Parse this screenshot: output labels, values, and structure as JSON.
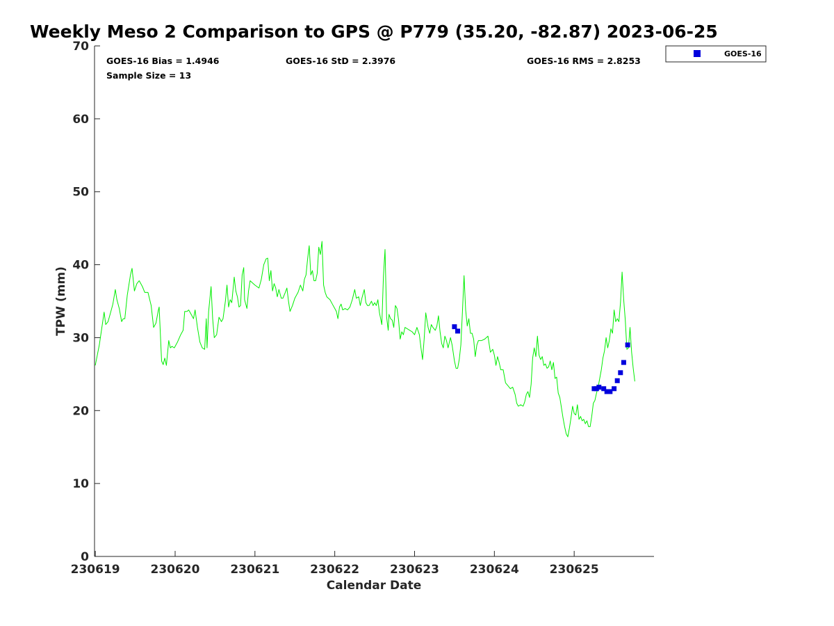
{
  "chart_data": {
    "type": "line",
    "title": "Weekly Meso 2 Comparison to GPS @ P779 (35.20, -82.87) 2023-06-25",
    "xlabel": "Calendar Date",
    "ylabel": "TPW (mm)",
    "xlim": [
      -0.01,
      7.0
    ],
    "ylim": [
      0,
      70
    ],
    "x_ticks": [
      {
        "value": 0,
        "label": "230619"
      },
      {
        "value": 1,
        "label": "230620"
      },
      {
        "value": 2,
        "label": "230621"
      },
      {
        "value": 3,
        "label": "230622"
      },
      {
        "value": 4,
        "label": "230623"
      },
      {
        "value": 5,
        "label": "230624"
      },
      {
        "value": 6,
        "label": "230625"
      }
    ],
    "y_ticks": [
      0,
      10,
      20,
      30,
      40,
      50,
      60,
      70
    ],
    "grid": false,
    "legend": {
      "placement": "outside-top-right",
      "entries": [
        "GOES-16"
      ]
    },
    "stats": {
      "bias": "GOES-16 Bias = 1.4946",
      "std": "GOES-16 StD = 2.3976",
      "rms": "GOES-16 RMS = 2.8253",
      "sample": "Sample Size = 13"
    },
    "series": [
      {
        "color": "#00ee00",
        "style": "line",
        "points": [
          [
            0.0,
            26.2
          ],
          [
            0.05,
            29.0
          ],
          [
            0.09,
            32.0
          ],
          [
            0.11,
            33.5
          ],
          [
            0.13,
            31.8
          ],
          [
            0.16,
            32.2
          ],
          [
            0.19,
            33.4
          ],
          [
            0.22,
            34.6
          ],
          [
            0.25,
            36.6
          ],
          [
            0.27,
            35.2
          ],
          [
            0.3,
            34.0
          ],
          [
            0.33,
            32.2
          ],
          [
            0.35,
            32.6
          ],
          [
            0.37,
            32.6
          ],
          [
            0.4,
            35.8
          ],
          [
            0.44,
            38.6
          ],
          [
            0.46,
            39.5
          ],
          [
            0.49,
            36.4
          ],
          [
            0.52,
            37.4
          ],
          [
            0.55,
            37.8
          ],
          [
            0.59,
            37.0
          ],
          [
            0.62,
            36.2
          ],
          [
            0.66,
            36.2
          ],
          [
            0.7,
            34.4
          ],
          [
            0.73,
            31.4
          ],
          [
            0.76,
            32.0
          ],
          [
            0.79,
            33.8
          ],
          [
            0.8,
            34.2
          ],
          [
            0.83,
            26.8
          ],
          [
            0.85,
            26.3
          ],
          [
            0.87,
            27.2
          ],
          [
            0.89,
            26.2
          ],
          [
            0.92,
            29.6
          ],
          [
            0.94,
            28.6
          ],
          [
            0.96,
            28.8
          ],
          [
            0.99,
            28.6
          ],
          [
            1.03,
            29.4
          ],
          [
            1.07,
            30.4
          ],
          [
            1.1,
            31.0
          ],
          [
            1.12,
            33.6
          ],
          [
            1.15,
            33.6
          ],
          [
            1.17,
            33.8
          ],
          [
            1.2,
            33.2
          ],
          [
            1.23,
            32.6
          ],
          [
            1.25,
            33.8
          ],
          [
            1.28,
            31.4
          ],
          [
            1.31,
            29.4
          ],
          [
            1.34,
            28.6
          ],
          [
            1.37,
            28.4
          ],
          [
            1.39,
            32.6
          ],
          [
            1.4,
            28.6
          ],
          [
            1.42,
            33.6
          ],
          [
            1.45,
            37.0
          ],
          [
            1.47,
            32.6
          ],
          [
            1.49,
            30.0
          ],
          [
            1.52,
            30.4
          ],
          [
            1.55,
            32.8
          ],
          [
            1.58,
            32.2
          ],
          [
            1.6,
            32.6
          ],
          [
            1.63,
            35.0
          ],
          [
            1.65,
            37.2
          ],
          [
            1.67,
            34.2
          ],
          [
            1.69,
            35.2
          ],
          [
            1.71,
            34.8
          ],
          [
            1.74,
            38.3
          ],
          [
            1.76,
            36.4
          ],
          [
            1.78,
            35.6
          ],
          [
            1.8,
            34.2
          ],
          [
            1.82,
            34.4
          ],
          [
            1.84,
            38.6
          ],
          [
            1.86,
            39.6
          ],
          [
            1.87,
            35.2
          ],
          [
            1.9,
            34.0
          ],
          [
            1.92,
            36.4
          ],
          [
            1.94,
            37.8
          ],
          [
            1.96,
            37.6
          ],
          [
            2.0,
            37.2
          ],
          [
            2.05,
            36.8
          ],
          [
            2.08,
            38.0
          ],
          [
            2.11,
            40.0
          ],
          [
            2.14,
            40.8
          ],
          [
            2.16,
            40.9
          ],
          [
            2.18,
            37.8
          ],
          [
            2.2,
            39.2
          ],
          [
            2.22,
            36.4
          ],
          [
            2.24,
            37.4
          ],
          [
            2.26,
            36.8
          ],
          [
            2.28,
            35.6
          ],
          [
            2.3,
            36.6
          ],
          [
            2.33,
            35.4
          ],
          [
            2.35,
            35.4
          ],
          [
            2.38,
            36.2
          ],
          [
            2.4,
            36.8
          ],
          [
            2.42,
            35.0
          ],
          [
            2.44,
            33.6
          ],
          [
            2.47,
            34.4
          ],
          [
            2.5,
            35.4
          ],
          [
            2.54,
            36.2
          ],
          [
            2.57,
            37.2
          ],
          [
            2.6,
            36.4
          ],
          [
            2.62,
            38.0
          ],
          [
            2.64,
            38.6
          ],
          [
            2.66,
            40.8
          ],
          [
            2.68,
            42.6
          ],
          [
            2.7,
            38.6
          ],
          [
            2.72,
            39.2
          ],
          [
            2.74,
            37.8
          ],
          [
            2.76,
            37.8
          ],
          [
            2.78,
            38.8
          ],
          [
            2.8,
            42.4
          ],
          [
            2.82,
            41.4
          ],
          [
            2.84,
            43.2
          ],
          [
            2.86,
            37.2
          ],
          [
            2.88,
            36.2
          ],
          [
            2.9,
            35.6
          ],
          [
            2.94,
            35.2
          ],
          [
            2.97,
            34.6
          ],
          [
            3.0,
            34.0
          ],
          [
            3.02,
            33.6
          ],
          [
            3.04,
            32.6
          ],
          [
            3.06,
            34.2
          ],
          [
            3.08,
            34.6
          ],
          [
            3.1,
            33.8
          ],
          [
            3.13,
            34.0
          ],
          [
            3.16,
            33.8
          ],
          [
            3.19,
            34.2
          ],
          [
            3.22,
            35.2
          ],
          [
            3.25,
            36.6
          ],
          [
            3.27,
            35.4
          ],
          [
            3.3,
            35.6
          ],
          [
            3.32,
            34.4
          ],
          [
            3.34,
            35.4
          ],
          [
            3.37,
            36.6
          ],
          [
            3.39,
            34.8
          ],
          [
            3.41,
            34.4
          ],
          [
            3.43,
            34.4
          ],
          [
            3.46,
            35.0
          ],
          [
            3.48,
            34.4
          ],
          [
            3.5,
            34.8
          ],
          [
            3.52,
            34.4
          ],
          [
            3.54,
            35.2
          ],
          [
            3.56,
            33.4
          ],
          [
            3.59,
            31.8
          ],
          [
            3.61,
            38.4
          ],
          [
            3.63,
            42.1
          ],
          [
            3.65,
            32.8
          ],
          [
            3.67,
            31.0
          ],
          [
            3.68,
            33.2
          ],
          [
            3.7,
            32.6
          ],
          [
            3.72,
            32.4
          ],
          [
            3.74,
            31.4
          ],
          [
            3.76,
            34.4
          ],
          [
            3.78,
            34.0
          ],
          [
            3.8,
            32.4
          ],
          [
            3.82,
            29.8
          ],
          [
            3.84,
            30.8
          ],
          [
            3.86,
            30.4
          ],
          [
            3.88,
            31.4
          ],
          [
            3.91,
            31.2
          ],
          [
            3.94,
            31.0
          ],
          [
            3.97,
            30.8
          ],
          [
            4.0,
            30.4
          ],
          [
            4.03,
            31.4
          ],
          [
            4.06,
            30.4
          ],
          [
            4.08,
            28.6
          ],
          [
            4.1,
            27.0
          ],
          [
            4.12,
            29.8
          ],
          [
            4.14,
            33.4
          ],
          [
            4.17,
            31.4
          ],
          [
            4.19,
            30.6
          ],
          [
            4.21,
            31.8
          ],
          [
            4.23,
            31.4
          ],
          [
            4.26,
            31.0
          ],
          [
            4.28,
            31.6
          ],
          [
            4.3,
            33.0
          ],
          [
            4.32,
            30.8
          ],
          [
            4.34,
            29.2
          ],
          [
            4.36,
            28.6
          ],
          [
            4.38,
            30.2
          ],
          [
            4.4,
            29.6
          ],
          [
            4.42,
            28.6
          ],
          [
            4.45,
            30.0
          ],
          [
            4.47,
            29.0
          ],
          [
            4.5,
            26.8
          ],
          [
            4.52,
            25.8
          ],
          [
            4.54,
            25.8
          ],
          [
            4.56,
            27.0
          ],
          [
            4.58,
            29.0
          ],
          [
            4.6,
            33.6
          ],
          [
            4.62,
            38.5
          ],
          [
            4.64,
            33.8
          ],
          [
            4.66,
            31.6
          ],
          [
            4.68,
            32.6
          ],
          [
            4.7,
            30.6
          ],
          [
            4.72,
            30.6
          ],
          [
            4.74,
            29.8
          ],
          [
            4.76,
            27.4
          ],
          [
            4.78,
            29.0
          ],
          [
            4.8,
            29.6
          ],
          [
            4.84,
            29.6
          ],
          [
            4.88,
            29.8
          ],
          [
            4.92,
            30.2
          ],
          [
            4.95,
            28.0
          ],
          [
            4.98,
            28.4
          ],
          [
            5.0,
            27.6
          ],
          [
            5.02,
            26.2
          ],
          [
            5.04,
            27.4
          ],
          [
            5.06,
            26.6
          ],
          [
            5.08,
            25.6
          ],
          [
            5.11,
            25.6
          ],
          [
            5.14,
            23.8
          ],
          [
            5.17,
            23.4
          ],
          [
            5.2,
            23.0
          ],
          [
            5.23,
            23.2
          ],
          [
            5.26,
            22.2
          ],
          [
            5.28,
            21.0
          ],
          [
            5.3,
            20.6
          ],
          [
            5.33,
            20.8
          ],
          [
            5.36,
            20.6
          ],
          [
            5.38,
            21.2
          ],
          [
            5.4,
            22.2
          ],
          [
            5.42,
            22.6
          ],
          [
            5.44,
            21.8
          ],
          [
            5.46,
            23.6
          ],
          [
            5.48,
            27.2
          ],
          [
            5.5,
            28.6
          ],
          [
            5.52,
            27.4
          ],
          [
            5.54,
            30.2
          ],
          [
            5.56,
            27.6
          ],
          [
            5.58,
            27.0
          ],
          [
            5.6,
            27.4
          ],
          [
            5.62,
            26.2
          ],
          [
            5.64,
            26.4
          ],
          [
            5.66,
            25.8
          ],
          [
            5.68,
            26.0
          ],
          [
            5.7,
            26.8
          ],
          [
            5.72,
            25.6
          ],
          [
            5.74,
            26.6
          ],
          [
            5.76,
            24.4
          ],
          [
            5.78,
            24.6
          ],
          [
            5.8,
            22.4
          ],
          [
            5.82,
            21.8
          ],
          [
            5.84,
            20.4
          ],
          [
            5.86,
            19.0
          ],
          [
            5.88,
            17.8
          ],
          [
            5.9,
            16.8
          ],
          [
            5.92,
            16.4
          ],
          [
            5.94,
            17.6
          ],
          [
            5.96,
            19.0
          ],
          [
            5.98,
            20.6
          ],
          [
            6.0,
            19.6
          ],
          [
            6.02,
            19.4
          ],
          [
            6.04,
            20.8
          ],
          [
            6.06,
            18.8
          ],
          [
            6.08,
            19.2
          ],
          [
            6.1,
            18.6
          ],
          [
            6.12,
            18.8
          ],
          [
            6.14,
            18.2
          ],
          [
            6.16,
            18.6
          ],
          [
            6.18,
            17.8
          ],
          [
            6.2,
            17.8
          ],
          [
            6.22,
            19.2
          ],
          [
            6.24,
            21.0
          ],
          [
            6.26,
            21.4
          ],
          [
            6.28,
            22.4
          ],
          [
            6.3,
            23.2
          ],
          [
            6.32,
            24.4
          ],
          [
            6.34,
            25.6
          ],
          [
            6.36,
            27.2
          ],
          [
            6.38,
            28.2
          ],
          [
            6.4,
            30.0
          ],
          [
            6.42,
            28.6
          ],
          [
            6.44,
            29.6
          ],
          [
            6.46,
            31.2
          ],
          [
            6.48,
            30.6
          ],
          [
            6.5,
            33.8
          ],
          [
            6.52,
            32.2
          ],
          [
            6.54,
            32.6
          ],
          [
            6.56,
            32.2
          ],
          [
            6.58,
            34.8
          ],
          [
            6.6,
            39.0
          ],
          [
            6.62,
            35.2
          ],
          [
            6.64,
            32.4
          ],
          [
            6.66,
            28.4
          ],
          [
            6.68,
            28.6
          ],
          [
            6.7,
            31.4
          ],
          [
            6.72,
            28.0
          ],
          [
            6.74,
            25.8
          ],
          [
            6.76,
            24.0
          ]
        ]
      },
      {
        "name": "GOES-16",
        "color": "#0000dd",
        "style": "marker",
        "points": [
          [
            4.5,
            31.5
          ],
          [
            4.54,
            30.9
          ],
          [
            6.25,
            23.0
          ],
          [
            6.28,
            23.0
          ],
          [
            6.31,
            23.2
          ],
          [
            6.37,
            23.0
          ],
          [
            6.41,
            22.6
          ],
          [
            6.45,
            22.6
          ],
          [
            6.5,
            23.0
          ],
          [
            6.54,
            24.1
          ],
          [
            6.58,
            25.2
          ],
          [
            6.62,
            26.6
          ],
          [
            6.67,
            29.0
          ]
        ]
      }
    ]
  }
}
